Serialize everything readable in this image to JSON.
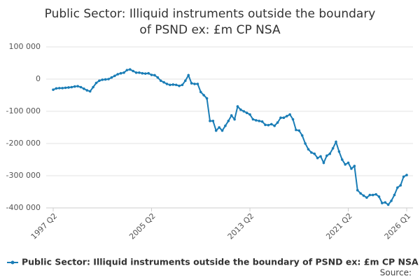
{
  "chart_data": {
    "type": "line",
    "title": "Public Sector: Illiquid instruments outside the boundary of PSND ex: £m CP NSA",
    "source": "Source:",
    "categories": [
      "1997 Q2",
      null,
      null,
      null,
      null,
      null,
      null,
      null,
      null,
      null,
      null,
      null,
      null,
      null,
      null,
      null,
      null,
      null,
      null,
      null,
      null,
      null,
      null,
      null,
      null,
      null,
      null,
      null,
      null,
      null,
      null,
      null,
      "2005 Q2",
      null,
      null,
      null,
      null,
      null,
      null,
      null,
      null,
      null,
      null,
      null,
      null,
      null,
      null,
      null,
      null,
      null,
      null,
      null,
      null,
      null,
      null,
      null,
      null,
      null,
      null,
      null,
      null,
      null,
      null,
      null,
      "2013 Q2",
      null,
      null,
      null,
      null,
      null,
      null,
      null,
      null,
      null,
      null,
      null,
      null,
      null,
      null,
      null,
      null,
      null,
      null,
      null,
      null,
      null,
      null,
      null,
      null,
      null,
      null,
      null,
      null,
      null,
      null,
      null,
      "2021 Q2",
      null,
      null,
      null,
      null,
      null,
      null,
      null,
      null,
      null,
      null,
      null,
      null,
      null,
      null,
      null,
      null,
      null,
      null,
      "2026 Q1"
    ],
    "series": [
      {
        "name": "Public Sector: Illiquid instruments outside the boundary of PSND ex: £m CP NSA",
        "color": "#1a7db6",
        "values": [
          -33000,
          -29000,
          -28000,
          -28000,
          -27000,
          -26000,
          -25000,
          -23000,
          -22000,
          -25000,
          -30000,
          -35000,
          -38000,
          -25000,
          -12000,
          -5000,
          -2000,
          -1000,
          0,
          5000,
          10000,
          15000,
          18000,
          20000,
          28000,
          30000,
          25000,
          20000,
          20000,
          18000,
          17000,
          18000,
          13000,
          12000,
          5000,
          -5000,
          -10000,
          -15000,
          -18000,
          -17000,
          -18000,
          -21000,
          -18000,
          -5000,
          12000,
          -13000,
          -15000,
          -15000,
          -40000,
          -50000,
          -60000,
          -130000,
          -130000,
          -160000,
          -150000,
          -160000,
          -145000,
          -130000,
          -113000,
          -125000,
          -85000,
          -95000,
          -100000,
          -105000,
          -110000,
          -125000,
          -128000,
          -130000,
          -132000,
          -142000,
          -143000,
          -140000,
          -145000,
          -135000,
          -120000,
          -120000,
          -115000,
          -110000,
          -125000,
          -158000,
          -160000,
          -175000,
          -200000,
          -218000,
          -228000,
          -232000,
          -245000,
          -240000,
          -260000,
          -238000,
          -232000,
          -215000,
          -195000,
          -225000,
          -250000,
          -265000,
          -260000,
          -278000,
          -270000,
          -345000,
          -355000,
          -362000,
          -368000,
          -360000,
          -360000,
          -358000,
          -365000,
          -385000,
          -383000,
          -390000,
          -378000,
          -360000,
          -337000,
          -330000,
          -303000,
          -298000
        ]
      }
    ],
    "ylim": [
      -400000,
      100000
    ],
    "yticks": [
      {
        "value": -400000,
        "label": "-400 000"
      },
      {
        "value": -300000,
        "label": "-300 000"
      },
      {
        "value": -200000,
        "label": "-200 000"
      },
      {
        "value": -100000,
        "label": "-100 000"
      },
      0,
      {
        "value": 100000,
        "label": "100 000"
      }
    ],
    "grid": true
  }
}
